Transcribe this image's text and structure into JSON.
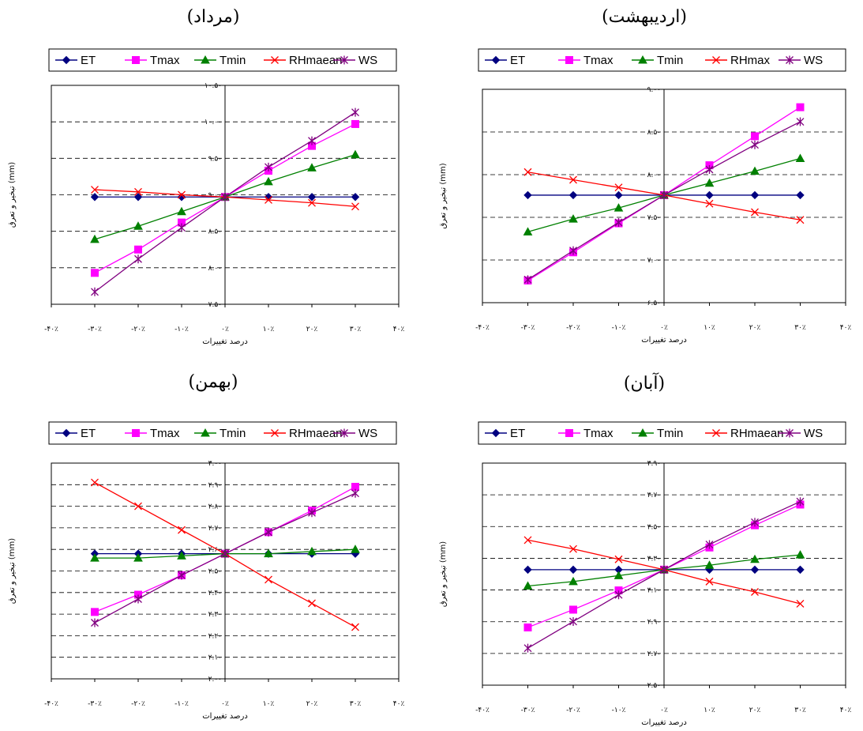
{
  "colors": {
    "ET": "#000080",
    "Tmax": "#FF00FF",
    "Tmin": "#008000",
    "RH": "#FF0000",
    "WS": "#800080"
  },
  "chart_data": [
    {
      "type": "line",
      "title": "(مرداد)",
      "xlabel": "درصد تغییرات",
      "ylabel": "تبخیر و تعرق (mm)",
      "x_ticks": [
        "-۴۰٪",
        "-۳۰٪",
        "-۲۰٪",
        "-۱۰٪",
        "۰٪",
        "۱۰٪",
        "۲۰٪",
        "۳۰٪",
        "۴۰٪"
      ],
      "y_ticks": [
        "۷.۵۰",
        "۸.۰۰",
        "۸.۵۰",
        "۹.۰۰",
        "۹.۵۰",
        "۱۰.۰۰",
        "۱۰.۵۰"
      ],
      "x": [
        -30,
        -20,
        -10,
        0,
        10,
        20,
        30
      ],
      "xlim": [
        -40,
        40
      ],
      "ylim": [
        7.5,
        10.5
      ],
      "legend_position": "top",
      "series": [
        {
          "name": "ET",
          "marker": "diamond",
          "values": [
            8.97,
            8.97,
            8.97,
            8.97,
            8.97,
            8.97,
            8.97
          ]
        },
        {
          "name": "Tmax",
          "marker": "square",
          "values": [
            7.93,
            8.25,
            8.62,
            8.97,
            9.33,
            9.67,
            9.97
          ]
        },
        {
          "name": "Tmin",
          "marker": "triangle",
          "values": [
            8.39,
            8.57,
            8.77,
            8.97,
            9.18,
            9.37,
            9.55
          ]
        },
        {
          "name": "RHmaean",
          "marker": "x",
          "values": [
            9.07,
            9.04,
            9.0,
            8.97,
            8.93,
            8.89,
            8.84
          ]
        },
        {
          "name": "WS",
          "marker": "star",
          "values": [
            7.67,
            8.12,
            8.55,
            8.97,
            9.38,
            9.74,
            10.13
          ]
        }
      ]
    },
    {
      "type": "line",
      "title": "(اردیبهشت)",
      "xlabel": "درصد تغییرات",
      "ylabel": "تبخیر و تعرق (mm)",
      "x_ticks": [
        "-۴۰٪",
        "-۳۰٪",
        "-۲۰٪",
        "-۱۰٪",
        "۰٪",
        "۱۰٪",
        "۲۰٪",
        "۳۰٪",
        "۴۰٪"
      ],
      "y_ticks": [
        "۶.۵۰",
        "۷.۰۰",
        "۷.۵۰",
        "۸.۰۰",
        "۸.۵۰",
        "۹.۰۰"
      ],
      "x": [
        -30,
        -20,
        -10,
        0,
        10,
        20,
        30
      ],
      "xlim": [
        -40,
        40
      ],
      "ylim": [
        6.5,
        9.0
      ],
      "legend_position": "top",
      "series": [
        {
          "name": "ET",
          "marker": "diamond",
          "values": [
            7.76,
            7.76,
            7.76,
            7.76,
            7.76,
            7.76,
            7.76
          ]
        },
        {
          "name": "Tmax",
          "marker": "square",
          "values": [
            6.76,
            7.09,
            7.43,
            7.76,
            8.11,
            8.45,
            8.79
          ]
        },
        {
          "name": "Tmin",
          "marker": "triangle",
          "values": [
            7.33,
            7.48,
            7.61,
            7.76,
            7.9,
            8.04,
            8.19
          ]
        },
        {
          "name": "RHmax",
          "marker": "x",
          "values": [
            8.03,
            7.94,
            7.85,
            7.76,
            7.66,
            7.56,
            7.47
          ]
        },
        {
          "name": "WS",
          "marker": "star",
          "values": [
            6.77,
            7.11,
            7.44,
            7.76,
            8.06,
            8.35,
            8.62
          ]
        }
      ]
    },
    {
      "type": "line",
      "title": "(بهمن)",
      "xlabel": "درصد تغییرات",
      "ylabel": "تبخیر و تعرق (mm)",
      "x_ticks": [
        "-۴۰٪",
        "-۳۰٪",
        "-۲۰٪",
        "-۱۰٪",
        "۰٪",
        "۱۰٪",
        "۲۰٪",
        "۳۰٪",
        "۴۰٪"
      ],
      "y_ticks": [
        "۲.۰۰",
        "۲.۱۰",
        "۲.۲۰",
        "۲.۳۰",
        "۲.۴۰",
        "۲.۵۰",
        "۲.۶۰",
        "۲.۷۰",
        "۲.۸۰",
        "۲.۹۰",
        "۳.۰۰"
      ],
      "x": [
        -30,
        -20,
        -10,
        0,
        10,
        20,
        30
      ],
      "xlim": [
        -40,
        40
      ],
      "ylim": [
        2.0,
        3.0
      ],
      "legend_position": "top",
      "series": [
        {
          "name": "ET",
          "marker": "diamond",
          "values": [
            2.58,
            2.58,
            2.58,
            2.58,
            2.58,
            2.58,
            2.58
          ]
        },
        {
          "name": "Tmax",
          "marker": "square",
          "values": [
            2.31,
            2.39,
            2.48,
            2.58,
            2.68,
            2.78,
            2.89
          ]
        },
        {
          "name": "Tmin",
          "marker": "triangle",
          "values": [
            2.56,
            2.56,
            2.57,
            2.58,
            2.58,
            2.59,
            2.6
          ]
        },
        {
          "name": "RHmaean",
          "marker": "x",
          "values": [
            2.91,
            2.8,
            2.69,
            2.58,
            2.46,
            2.35,
            2.24
          ]
        },
        {
          "name": "WS",
          "marker": "star",
          "values": [
            2.26,
            2.37,
            2.48,
            2.58,
            2.68,
            2.77,
            2.86
          ]
        }
      ]
    },
    {
      "type": "line",
      "title": "(آبان)",
      "xlabel": "درصد تغییرات",
      "ylabel": "تبخیر و تعرق (mm)",
      "x_ticks": [
        "-۴۰٪",
        "-۳۰٪",
        "-۲۰٪",
        "-۱۰٪",
        "۰٪",
        "۱۰٪",
        "۲۰٪",
        "۳۰٪",
        "۴۰٪"
      ],
      "y_ticks": [
        "۲.۵۰",
        "۲.۷۰",
        "۲.۹۰",
        "۳.۱۰",
        "۳.۳۰",
        "۳.۵۰",
        "۳.۷۰",
        "۳.۹۰"
      ],
      "x": [
        -30,
        -20,
        -10,
        0,
        10,
        20,
        30
      ],
      "xlim": [
        -40,
        40
      ],
      "ylim": [
        2.5,
        4.0
      ],
      "legend_position": "top",
      "series": [
        {
          "name": "ET",
          "marker": "diamond",
          "values": [
            3.28,
            3.28,
            3.28,
            3.28,
            3.28,
            3.28,
            3.28
          ]
        },
        {
          "name": "Tmax",
          "marker": "square",
          "values": [
            2.89,
            3.01,
            3.14,
            3.28,
            3.43,
            3.58,
            3.72
          ]
        },
        {
          "name": "Tmin",
          "marker": "triangle",
          "values": [
            3.17,
            3.2,
            3.24,
            3.28,
            3.31,
            3.35,
            3.38
          ]
        },
        {
          "name": "RHmaean",
          "marker": "x",
          "values": [
            3.48,
            3.42,
            3.35,
            3.28,
            3.2,
            3.13,
            3.05
          ]
        },
        {
          "name": "WS",
          "marker": "star",
          "values": [
            2.75,
            2.93,
            3.11,
            3.28,
            3.45,
            3.6,
            3.74
          ]
        }
      ]
    }
  ]
}
